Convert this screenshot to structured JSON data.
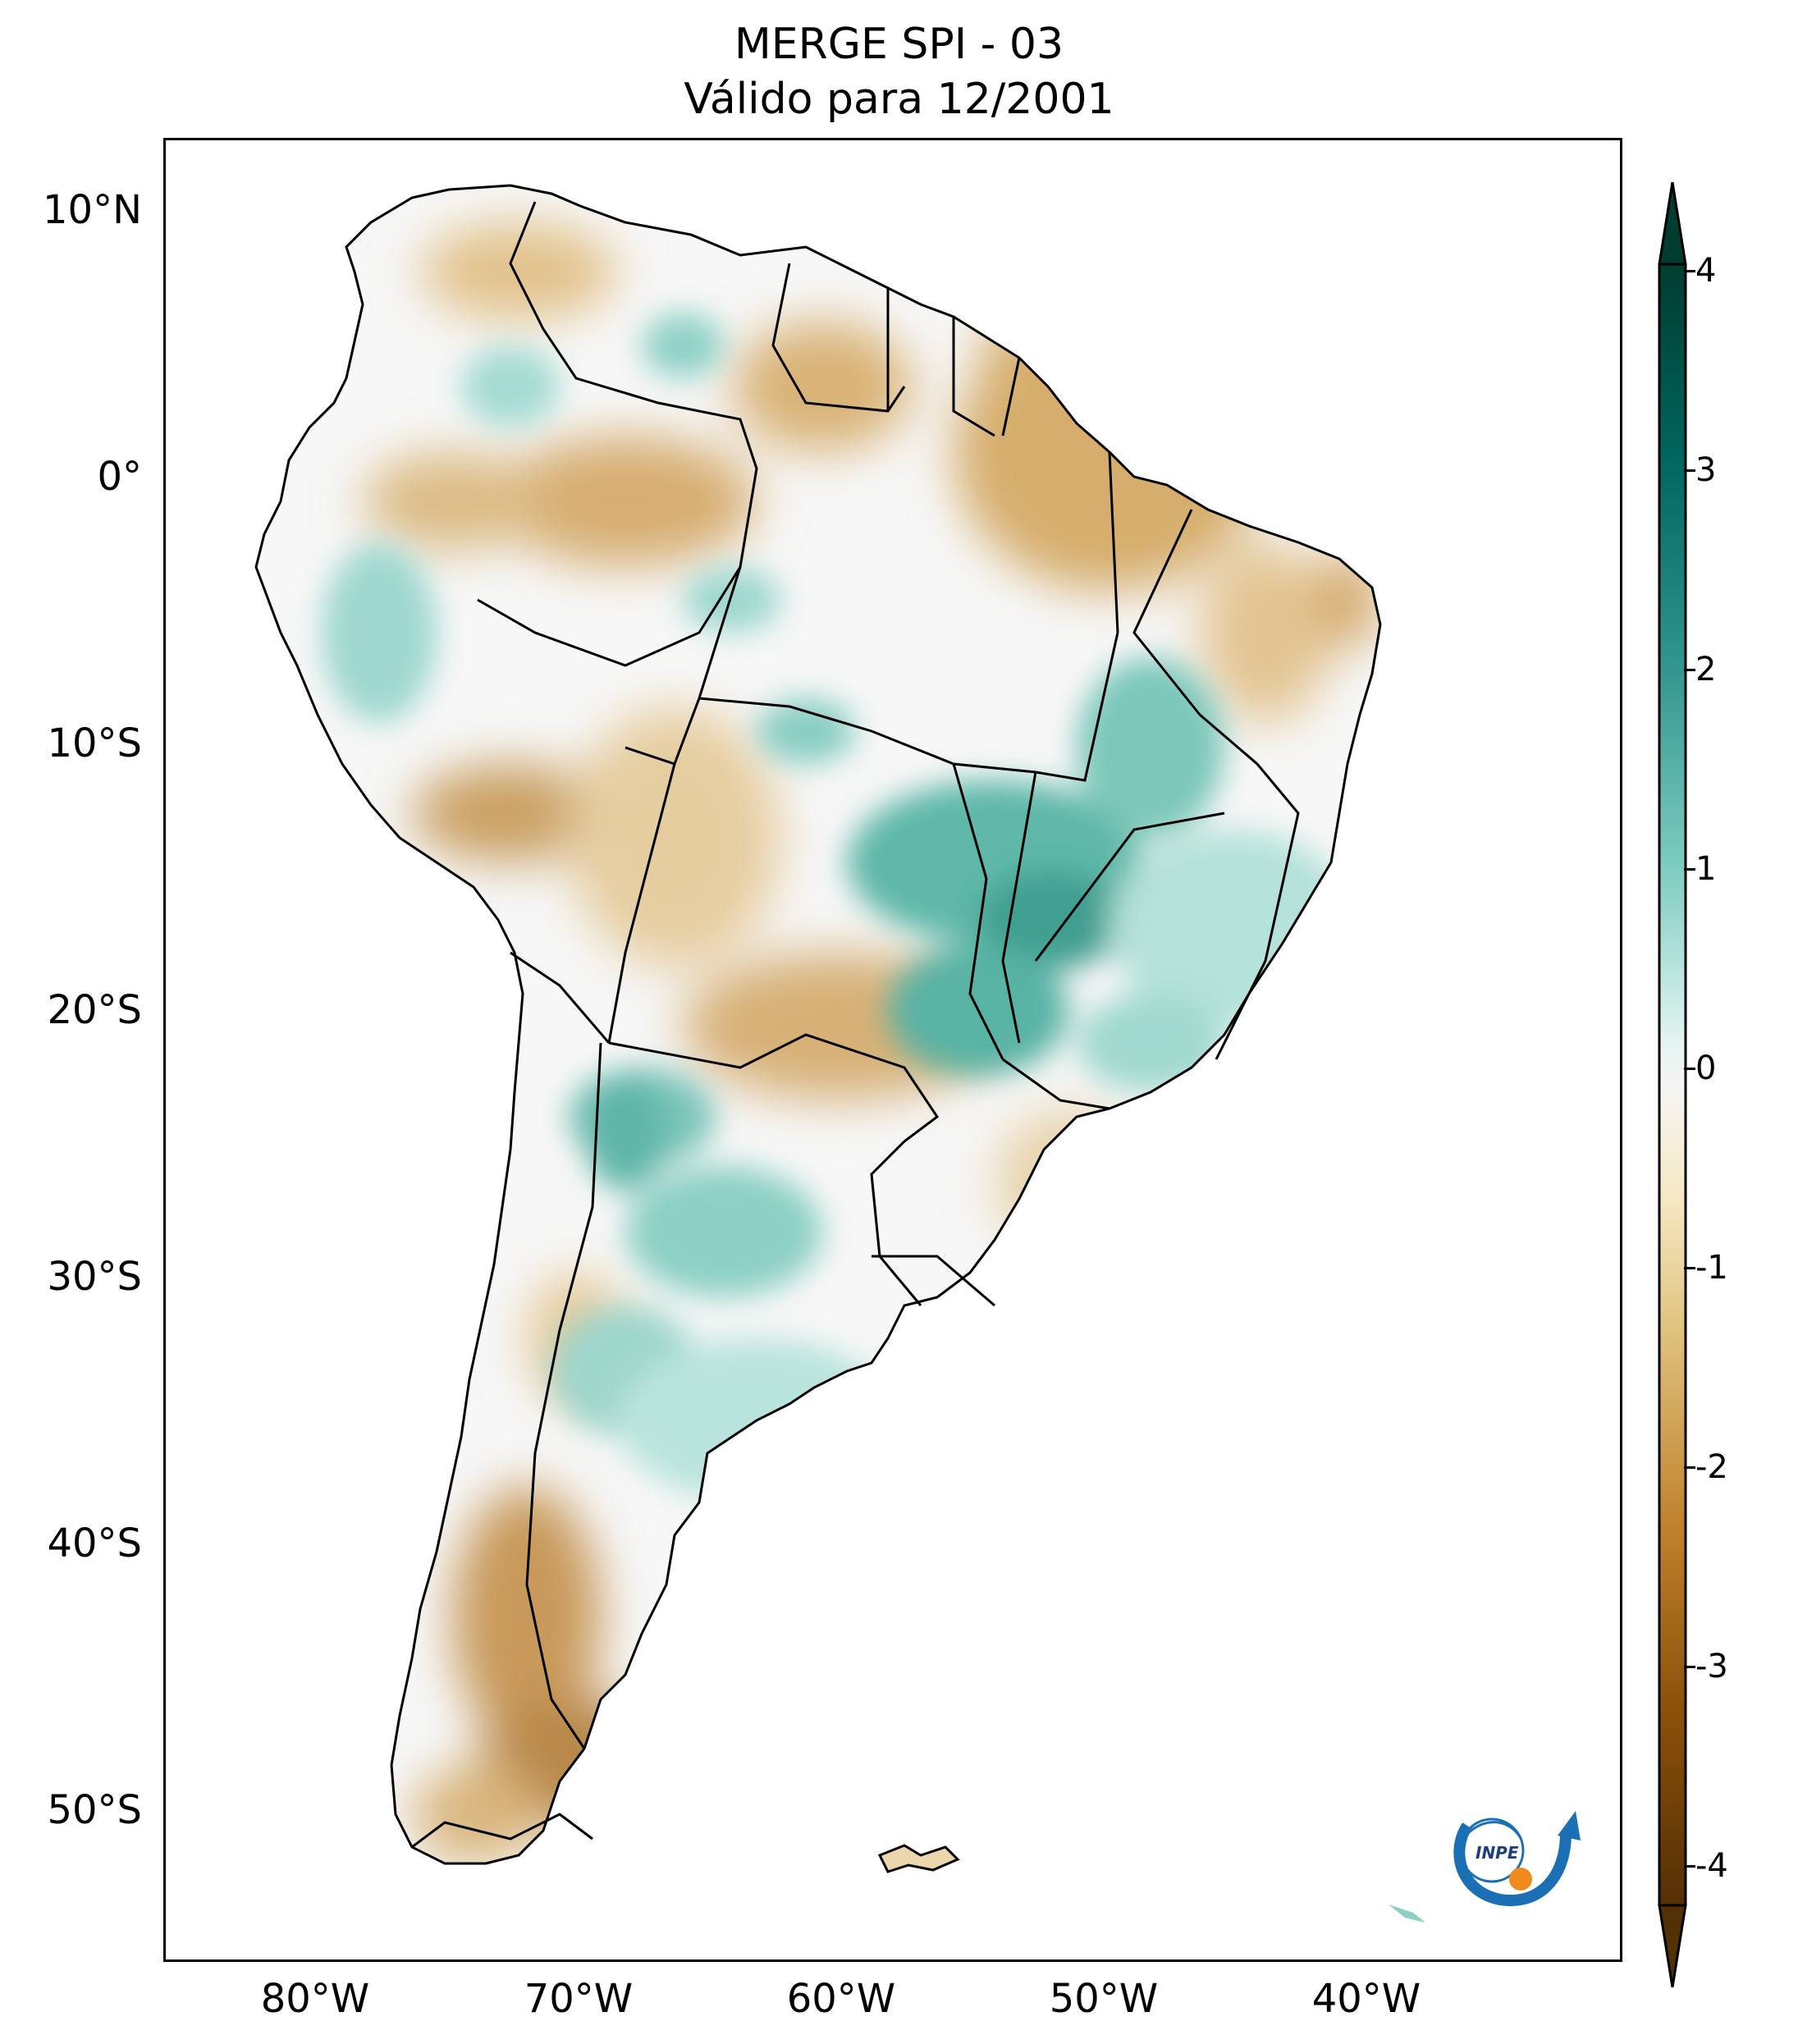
{
  "title": {
    "line1": "MERGE   SPI - 03",
    "line2": "Válido para 12/2001"
  },
  "map": {
    "region": "South America",
    "variable": "Standardized Precipitation Index (3-month)",
    "lat_labels": [
      "10°N",
      "0°",
      "10°S",
      "20°S",
      "30°S",
      "40°S",
      "50°S"
    ],
    "lon_labels": [
      "80°W",
      "70°W",
      "60°W",
      "50°W",
      "40°W"
    ],
    "colors": {
      "land_outline": "#000000",
      "ocean": "#ffffff",
      "dry_strong": "#8c5a1e",
      "dry_mid": "#c99a55",
      "dry_light": "#ecd7ad",
      "neutral": "#f7f7f7",
      "wet_light": "#c7ebe5",
      "wet_mid": "#74c8bb",
      "wet_strong": "#2f9b8c"
    }
  },
  "colorbar": {
    "ticks": [
      "4",
      "3",
      "2",
      "1",
      "0",
      "-1",
      "-2",
      "-3",
      "-4"
    ],
    "range": [
      -4,
      4
    ],
    "extend": "both",
    "colormap": "BrBG"
  },
  "logo": {
    "text": "INPE",
    "colors": {
      "arc": "#1a6fb5",
      "sun": "#f08a1d"
    }
  }
}
